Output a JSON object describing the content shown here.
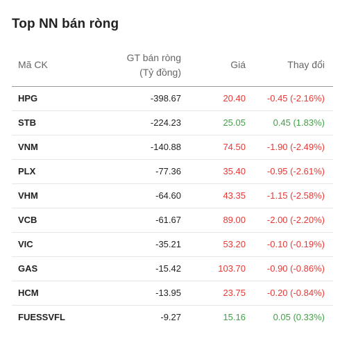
{
  "title": "Top NN bán ròng",
  "headers": {
    "code": "Mã CK",
    "value_line1": "GT bán ròng",
    "value_line2": "(Tỷ đồng)",
    "price": "Giá",
    "change": "Thay đổi"
  },
  "colors": {
    "down": "#e53935",
    "up": "#43a047"
  },
  "rows": [
    {
      "code": "HPG",
      "value": "-398.67",
      "price": "20.40",
      "change": "-0.45 (-2.16%)",
      "trend": "down"
    },
    {
      "code": "STB",
      "value": "-224.23",
      "price": "25.05",
      "change": "0.45 (1.83%)",
      "trend": "up"
    },
    {
      "code": "VNM",
      "value": "-140.88",
      "price": "74.50",
      "change": "-1.90 (-2.49%)",
      "trend": "down"
    },
    {
      "code": "PLX",
      "value": "-77.36",
      "price": "35.40",
      "change": "-0.95 (-2.61%)",
      "trend": "down"
    },
    {
      "code": "VHM",
      "value": "-64.60",
      "price": "43.35",
      "change": "-1.15 (-2.58%)",
      "trend": "down"
    },
    {
      "code": "VCB",
      "value": "-61.67",
      "price": "89.00",
      "change": "-2.00 (-2.20%)",
      "trend": "down"
    },
    {
      "code": "VIC",
      "value": "-35.21",
      "price": "53.20",
      "change": "-0.10 (-0.19%)",
      "trend": "down"
    },
    {
      "code": "GAS",
      "value": "-15.42",
      "price": "103.70",
      "change": "-0.90 (-0.86%)",
      "trend": "down"
    },
    {
      "code": "HCM",
      "value": "-13.95",
      "price": "23.75",
      "change": "-0.20 (-0.84%)",
      "trend": "down"
    },
    {
      "code": "FUESSVFL",
      "value": "-9.27",
      "price": "15.16",
      "change": "0.05 (0.33%)",
      "trend": "up"
    }
  ]
}
